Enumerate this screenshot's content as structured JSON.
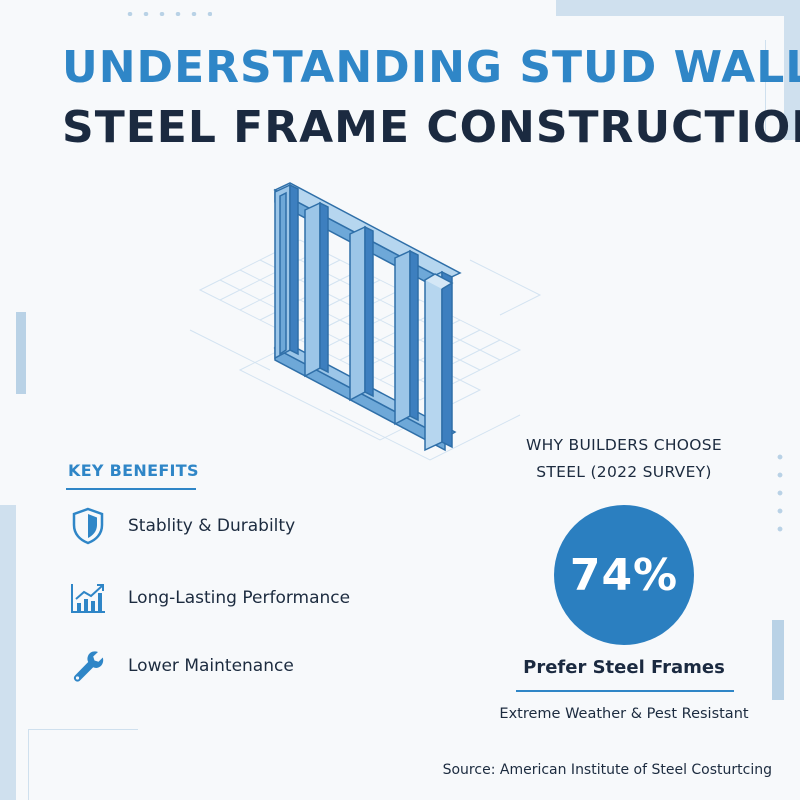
{
  "title": {
    "line1": "UNDERSTANDING STUD WALL",
    "line2": "STEEL FRAME CONSTRUCTION"
  },
  "key_benefits": {
    "heading": "KEY BENEFITS",
    "items": [
      {
        "icon": "shield-icon",
        "label": "Stablity & Durabilty"
      },
      {
        "icon": "growth-chart-icon",
        "label": "Long-Lasting Performance"
      },
      {
        "icon": "wrench-icon",
        "label": "Lower Maintenance"
      }
    ]
  },
  "survey": {
    "heading_line1": "WHY BUILDERS CHOOSE",
    "heading_line2": "STEEL (2022 SURVEY)",
    "percent": "74%",
    "caption": "Prefer Steel Frames",
    "subcaption": "Extreme Weather & Pest Resistant"
  },
  "source": "Source: American Institute of Steel Costurtcing",
  "colors": {
    "accent": "#2f86c7",
    "dark": "#1b2a40",
    "circle": "#2b7fc0",
    "frame_light": "#9cc6e8",
    "frame_mid": "#6ea8d8",
    "frame_dark": "#3d7fbf"
  }
}
